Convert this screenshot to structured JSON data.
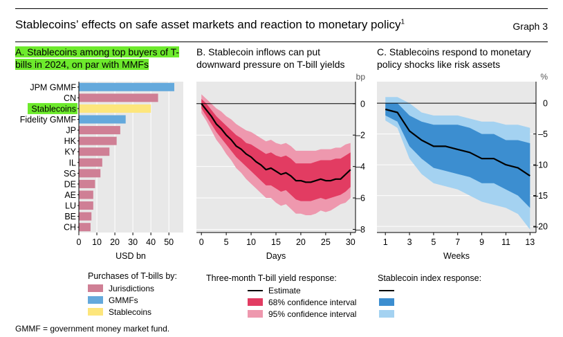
{
  "header": {
    "title": "Stablecoins’ effects on safe asset markets and reaction to monetary policy",
    "title_sup": "1",
    "graph_label": "Graph 3"
  },
  "colors": {
    "jurisdictions": "#cf7f95",
    "gmmfs": "#64a9dc",
    "stablecoins": "#fde67c",
    "highlight": "#6dea2c",
    "ci68_b": "#e23c62",
    "ci95_b": "#ee98ae",
    "ci68_c": "#3c8ed0",
    "ci95_c": "#a4d2f1",
    "panel_bg": "#e8e8e8"
  },
  "panels": {
    "a": {
      "title": "A. Stablecoins among top buyers of T-bills in 2024, on par with MMFs"
    },
    "b": {
      "title": "B. Stablecoin inflows can put downward pressure on T-bill yields"
    },
    "c": {
      "title": "C. Stablecoins respond to monetary policy shocks like risk assets"
    }
  },
  "chart_data": [
    {
      "type": "bar",
      "orientation": "horizontal",
      "categories": [
        "JPM GMMF",
        "CN",
        "Stablecoins",
        "Fidelity GMMF",
        "JP",
        "HK",
        "KY",
        "IL",
        "SG",
        "DE",
        "AE",
        "LU",
        "BE",
        "CH"
      ],
      "values": [
        53,
        44,
        40,
        26,
        23,
        21,
        17,
        13,
        12,
        9,
        8,
        8,
        7,
        6.5
      ],
      "groups": [
        "GMMFs",
        "Jurisdictions",
        "Stablecoins",
        "GMMFs",
        "Jurisdictions",
        "Jurisdictions",
        "Jurisdictions",
        "Jurisdictions",
        "Jurisdictions",
        "Jurisdictions",
        "Jurisdictions",
        "Jurisdictions",
        "Jurisdictions",
        "Jurisdictions"
      ],
      "xlabel": "USD bn",
      "xlim": [
        0,
        58
      ],
      "xticks": [
        0,
        10,
        20,
        30,
        40,
        50
      ],
      "highlighted_category": "Stablecoins",
      "legend": {
        "title": "Purchases of T-bills by:",
        "entries": [
          "Jurisdictions",
          "GMMFs",
          "Stablecoins"
        ]
      }
    },
    {
      "type": "line",
      "x": [
        0,
        1,
        2,
        3,
        4,
        5,
        6,
        7,
        8,
        9,
        10,
        11,
        12,
        13,
        14,
        15,
        16,
        17,
        18,
        19,
        20,
        21,
        22,
        23,
        24,
        25,
        26,
        27,
        28,
        29,
        30
      ],
      "estimate": [
        0,
        -0.4,
        -0.8,
        -1.3,
        -1.6,
        -2.0,
        -2.3,
        -2.7,
        -2.9,
        -3.2,
        -3.4,
        -3.7,
        -3.9,
        -4.2,
        -4.1,
        -4.3,
        -4.5,
        -4.4,
        -4.6,
        -4.9,
        -4.9,
        -5.0,
        -5.0,
        -4.9,
        -4.8,
        -4.9,
        -4.9,
        -4.8,
        -4.8,
        -4.5,
        -4.2
      ],
      "ci68_low": [
        -0.3,
        -0.8,
        -1.3,
        -1.8,
        -2.2,
        -2.6,
        -3.0,
        -3.4,
        -3.7,
        -4.0,
        -4.3,
        -4.6,
        -4.9,
        -5.2,
        -5.2,
        -5.4,
        -5.6,
        -5.5,
        -5.8,
        -6.1,
        -6.2,
        -6.2,
        -6.2,
        -6.1,
        -6.0,
        -6.1,
        -6.0,
        -5.9,
        -5.8,
        -5.6,
        -5.3
      ],
      "ci68_high": [
        0.3,
        0.0,
        -0.4,
        -0.8,
        -1.1,
        -1.4,
        -1.7,
        -2.0,
        -2.2,
        -2.5,
        -2.6,
        -2.8,
        -3.0,
        -3.2,
        -3.1,
        -3.3,
        -3.4,
        -3.3,
        -3.5,
        -3.8,
        -3.8,
        -3.8,
        -3.8,
        -3.7,
        -3.6,
        -3.6,
        -3.6,
        -3.5,
        -3.5,
        -3.3,
        -3.1
      ],
      "ci95_low": [
        -0.6,
        -1.1,
        -1.7,
        -2.3,
        -2.7,
        -3.2,
        -3.6,
        -4.1,
        -4.4,
        -4.8,
        -5.1,
        -5.4,
        -5.7,
        -6.0,
        -6.0,
        -6.3,
        -6.5,
        -6.4,
        -6.7,
        -7.0,
        -7.0,
        -7.1,
        -7.1,
        -7.0,
        -6.8,
        -6.9,
        -6.8,
        -6.6,
        -6.4,
        -6.3,
        -6.0
      ],
      "ci95_high": [
        0.6,
        0.3,
        0.0,
        -0.3,
        -0.5,
        -0.8,
        -1.0,
        -1.3,
        -1.5,
        -1.7,
        -1.8,
        -2.0,
        -2.2,
        -2.4,
        -2.3,
        -2.5,
        -2.6,
        -2.5,
        -2.7,
        -3.0,
        -3.0,
        -3.0,
        -3.0,
        -3.0,
        -2.9,
        -2.9,
        -2.9,
        -2.8,
        -2.8,
        -2.6,
        -2.5
      ],
      "xlabel": "Days",
      "ylabel": "bp",
      "xlim": [
        -1,
        31
      ],
      "ylim": [
        -8.2,
        1.4
      ],
      "xticks": [
        0,
        5,
        10,
        15,
        20,
        25,
        30
      ],
      "yticks": [
        0,
        -2,
        -4,
        -6,
        -8
      ],
      "ytick_labels": [
        "0",
        "–2",
        "–4",
        "–6",
        "–8"
      ],
      "legend": {
        "title": "Three-month T-bill yield response:",
        "entries": [
          "Estimate",
          "68% confidence interval",
          "95% confidence interval"
        ]
      }
    },
    {
      "type": "line",
      "x": [
        1,
        2,
        3,
        4,
        5,
        6,
        7,
        8,
        9,
        10,
        11,
        12,
        13
      ],
      "estimate": [
        -1.0,
        -1.5,
        -4.5,
        -6.0,
        -7.0,
        -7.0,
        -7.5,
        -8.0,
        -9.0,
        -9.0,
        -10.0,
        -10.5,
        -11.8
      ],
      "ci68_low": [
        -2.0,
        -3.0,
        -7.0,
        -9.0,
        -10.5,
        -11.0,
        -11.5,
        -12.0,
        -13.0,
        -13.0,
        -14.0,
        -15.0,
        -17.0
      ],
      "ci68_high": [
        0.0,
        0.0,
        -2.0,
        -3.0,
        -3.5,
        -3.5,
        -3.5,
        -4.0,
        -5.0,
        -5.0,
        -6.0,
        -6.0,
        -6.5
      ],
      "ci95_low": [
        -2.8,
        -4.0,
        -9.0,
        -11.5,
        -13.0,
        -13.5,
        -14.0,
        -15.0,
        -16.0,
        -16.5,
        -17.0,
        -18.0,
        -20.5
      ],
      "ci95_high": [
        1.0,
        1.0,
        0.0,
        -1.5,
        -2.0,
        -2.0,
        -2.0,
        -2.5,
        -3.0,
        -3.0,
        -3.5,
        -3.5,
        -4.0
      ],
      "xlabel": "Weeks",
      "ylabel": "%",
      "xlim": [
        0.3,
        13.5
      ],
      "ylim": [
        -21,
        3.5
      ],
      "xticks": [
        1,
        3,
        5,
        7,
        9,
        11,
        13
      ],
      "yticks": [
        0,
        -5,
        -10,
        -15,
        -20
      ],
      "ytick_labels": [
        "0",
        "–5",
        "–10",
        "–15",
        "–20"
      ],
      "legend": {
        "title": "Stablecoin index response:",
        "entries": [
          "",
          "",
          ""
        ]
      }
    }
  ],
  "footnote": "GMMF = government money market fund."
}
